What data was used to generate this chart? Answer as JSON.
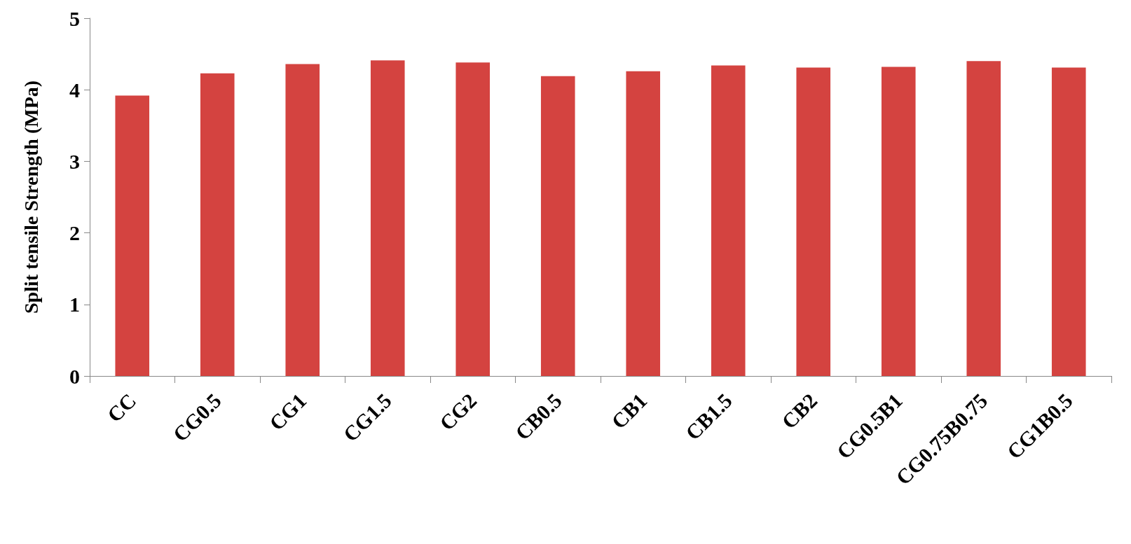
{
  "chart_data": {
    "type": "bar",
    "ylabel": "Split tensile Strength (MPa)",
    "categories": [
      "CC",
      "CG0.5",
      "CG1",
      "CG1.5",
      "CG2",
      "CB0.5",
      "CB1",
      "CB1.5",
      "CB2",
      "CG0.5B1",
      "CG0.75B0.75",
      "CG1B0.5"
    ],
    "values": [
      3.92,
      4.23,
      4.36,
      4.41,
      4.38,
      4.19,
      4.26,
      4.34,
      4.31,
      4.32,
      4.4,
      4.31
    ],
    "color": "#d44340",
    "ylim": [
      0,
      5
    ],
    "yticks": [
      0,
      1,
      2,
      3,
      4,
      5
    ],
    "grid": false
  }
}
